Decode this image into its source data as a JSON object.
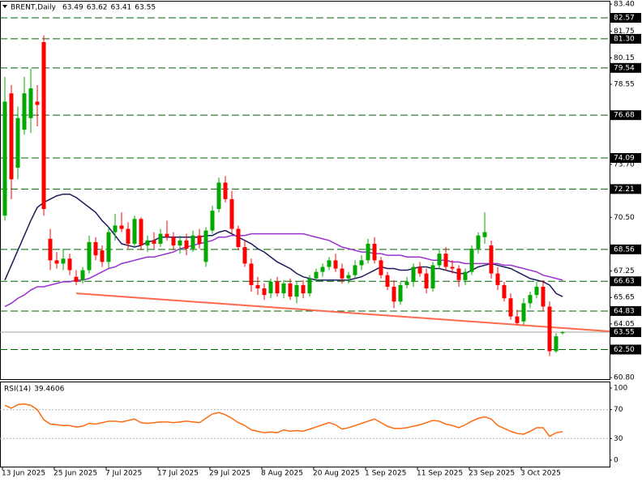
{
  "chart_data": [
    {
      "type": "candlestick",
      "title": "BRENT,Daily",
      "categories": [
        "13 Jun 2025",
        null,
        null,
        null,
        null,
        null,
        null,
        null,
        "25 Jun 2025",
        null,
        null,
        null,
        null,
        null,
        null,
        null,
        "7 Jul 2025",
        null,
        null,
        null,
        null,
        null,
        null,
        null,
        "17 Jul 2025",
        null,
        null,
        null,
        null,
        null,
        null,
        null,
        "29 Jul 2025",
        null,
        null,
        null,
        null,
        null,
        null,
        null,
        "8 Aug 2025",
        null,
        null,
        null,
        null,
        null,
        null,
        null,
        "20 Aug 2025",
        null,
        null,
        null,
        null,
        null,
        null,
        null,
        "1 Sep 2025",
        null,
        null,
        null,
        null,
        null,
        null,
        null,
        "11 Sep 2025",
        null,
        null,
        null,
        null,
        null,
        null,
        null,
        "23 Sep 2025",
        null,
        null,
        null,
        null,
        null,
        null,
        null,
        "3 Oct 2025",
        null,
        null,
        null,
        null,
        null,
        null
      ],
      "open": [
        70.6,
        78.0,
        73.5,
        75.8,
        76.5,
        77.5,
        81.1,
        69.2,
        67.9,
        67.7,
        68.0,
        66.9,
        66.7,
        67.3,
        69.0,
        68.5,
        67.8,
        69.6,
        70.0,
        69.8,
        68.9,
        70.4,
        68.8,
        69.1,
        68.9,
        69.5,
        69.3,
        68.8,
        69.1,
        68.6,
        69.4,
        67.8,
        69.7,
        71.0,
        72.6,
        71.6,
        69.8,
        68.7,
        67.7,
        66.4,
        66.2,
        65.9,
        66.6,
        65.9,
        66.5,
        65.7,
        66.4,
        65.9,
        66.8,
        67.2,
        67.5,
        67.9,
        67.4,
        66.8,
        67.0,
        67.6,
        67.9,
        68.9,
        67.9,
        67.0,
        66.3,
        65.4,
        66.4,
        66.6,
        67.5,
        67.1,
        66.2,
        67.6,
        68.3,
        67.5,
        67.4,
        66.7,
        67.2,
        68.6,
        69.3,
        68.8,
        67.1,
        66.4,
        65.6,
        64.5,
        64.2,
        65.3,
        65.8,
        66.3,
        65.1,
        62.4,
        63.49
      ],
      "high": [
        79.0,
        78.5,
        77.2,
        79.0,
        79.5,
        78.5,
        81.5,
        69.8,
        68.4,
        68.6,
        68.3,
        67.3,
        67.5,
        69.4,
        69.3,
        68.8,
        69.9,
        70.7,
        70.8,
        70.2,
        70.6,
        70.5,
        69.4,
        69.6,
        69.8,
        70.3,
        69.6,
        69.4,
        69.5,
        69.7,
        69.8,
        69.9,
        71.2,
        72.9,
        73.0,
        72.1,
        70.0,
        69.1,
        68.0,
        66.9,
        66.5,
        66.8,
        66.9,
        66.7,
        66.8,
        66.6,
        66.7,
        67.0,
        67.4,
        67.7,
        68.1,
        68.3,
        67.7,
        67.2,
        67.9,
        68.2,
        69.2,
        69.3,
        68.1,
        67.2,
        66.7,
        66.6,
        66.9,
        67.7,
        67.8,
        67.4,
        67.8,
        68.6,
        68.7,
        67.9,
        67.6,
        67.4,
        68.8,
        69.6,
        70.8,
        69.1,
        67.5,
        66.6,
        65.9,
        64.9,
        65.6,
        66.0,
        66.6,
        66.7,
        65.4,
        63.5,
        63.62
      ],
      "low": [
        70.3,
        71.6,
        72.8,
        75.5,
        75.6,
        76.0,
        70.6,
        67.3,
        67.4,
        67.3,
        67.0,
        66.4,
        66.5,
        67.1,
        67.9,
        67.5,
        67.4,
        69.1,
        69.6,
        68.6,
        68.7,
        68.5,
        68.4,
        68.6,
        68.7,
        69.1,
        68.5,
        68.3,
        68.2,
        68.4,
        68.6,
        67.5,
        69.5,
        70.8,
        71.4,
        69.5,
        68.5,
        67.5,
        66.0,
        65.8,
        65.5,
        65.6,
        65.7,
        65.6,
        65.5,
        65.3,
        65.6,
        65.7,
        66.6,
        66.9,
        67.3,
        67.2,
        66.5,
        66.5,
        66.8,
        67.3,
        67.7,
        67.7,
        66.8,
        66.1,
        65.0,
        65.2,
        66.2,
        66.3,
        66.9,
        65.9,
        66.0,
        67.4,
        67.3,
        67.1,
        66.3,
        66.4,
        67.0,
        68.3,
        68.9,
        66.8,
        66.1,
        65.4,
        64.3,
        64.0,
        64.0,
        65.0,
        65.6,
        64.8,
        62.1,
        62.3,
        63.41
      ],
      "close": [
        77.5,
        72.8,
        76.5,
        78.0,
        78.3,
        77.3,
        71.0,
        67.9,
        67.7,
        68.0,
        67.3,
        66.6,
        67.3,
        69.0,
        68.2,
        67.8,
        69.6,
        70.0,
        69.8,
        68.9,
        70.4,
        68.8,
        69.1,
        68.9,
        69.5,
        69.3,
        68.8,
        69.1,
        68.6,
        69.4,
        68.9,
        69.7,
        70.9,
        72.6,
        71.6,
        69.8,
        68.7,
        67.7,
        66.4,
        66.2,
        65.8,
        66.6,
        65.9,
        66.5,
        65.7,
        66.4,
        65.9,
        66.8,
        67.2,
        67.5,
        67.9,
        67.4,
        66.8,
        67.0,
        67.6,
        67.9,
        68.9,
        67.9,
        67.0,
        66.3,
        65.4,
        66.4,
        66.6,
        67.5,
        67.1,
        66.2,
        67.6,
        68.3,
        67.5,
        67.4,
        66.7,
        67.2,
        68.6,
        69.4,
        69.6,
        67.1,
        66.4,
        65.6,
        64.5,
        64.1,
        65.3,
        65.8,
        66.3,
        65.1,
        62.4,
        63.3,
        63.55
      ],
      "up_color": "#00a800",
      "down_color": "#ff0000",
      "overlays": [
        {
          "color": "#1c1c5c",
          "values": [
            66.7,
            67.6,
            68.5,
            69.4,
            70.3,
            71.1,
            71.4,
            71.6,
            71.8,
            71.9,
            71.9,
            71.7,
            71.4,
            71.1,
            70.8,
            70.3,
            69.9,
            69.4,
            68.9,
            68.8,
            68.7,
            68.8,
            69.0,
            69.1,
            69.3,
            69.3,
            69.3,
            69.3,
            69.3,
            69.3,
            69.3,
            69.4,
            69.4,
            69.6,
            69.7,
            69.5,
            69.3,
            69.1,
            68.9,
            68.6,
            68.4,
            68.1,
            67.8,
            67.6,
            67.4,
            67.1,
            66.9,
            66.8,
            66.7,
            66.7,
            66.7,
            66.7,
            66.7,
            66.7,
            66.8,
            66.9,
            67.1,
            67.3,
            67.5,
            67.4,
            67.4,
            67.3,
            67.3,
            67.4,
            67.5,
            67.5,
            67.4,
            67.4,
            67.3,
            67.2,
            67.1,
            67.1,
            67.3,
            67.5,
            67.6,
            67.7,
            67.6,
            67.5,
            67.4,
            67.2,
            67.0,
            66.8,
            66.7,
            66.6,
            66.4,
            65.9,
            65.7
          ]
        },
        {
          "color": "#9b30d0",
          "values": [
            65.1,
            65.3,
            65.6,
            65.8,
            66.1,
            66.3,
            66.3,
            66.4,
            66.5,
            66.6,
            66.6,
            66.7,
            66.7,
            66.8,
            67.0,
            67.2,
            67.4,
            67.5,
            67.7,
            67.8,
            67.9,
            68.0,
            68.1,
            68.1,
            68.2,
            68.3,
            68.4,
            68.6,
            68.7,
            68.8,
            68.9,
            69.0,
            69.1,
            69.3,
            69.3,
            69.4,
            69.4,
            69.4,
            69.5,
            69.5,
            69.5,
            69.5,
            69.5,
            69.5,
            69.5,
            69.5,
            69.5,
            69.4,
            69.3,
            69.2,
            69.1,
            68.9,
            68.7,
            68.6,
            68.5,
            68.4,
            68.4,
            68.3,
            68.3,
            68.2,
            68.2,
            68.2,
            68.1,
            68.1,
            68.1,
            68.0,
            67.9,
            67.9,
            67.9,
            67.8,
            67.8,
            67.7,
            67.7,
            67.7,
            67.7,
            67.7,
            67.7,
            67.6,
            67.6,
            67.5,
            67.4,
            67.3,
            67.2,
            67.0,
            66.9,
            66.8,
            66.7
          ]
        }
      ],
      "trendline": {
        "color": "#ff6a4d",
        "values": [
          65.9,
          63.6
        ]
      },
      "levels": [
        82.57,
        {
          "value": 81.3,
          "label": "81.30"
        },
        79.54,
        76.68,
        74.09,
        72.21,
        68.56,
        66.63,
        64.83,
        {
          "value": 62.5,
          "label": "62.50"
        }
      ],
      "level_color": "#006400",
      "ylim": [
        60.71,
        83.55
      ],
      "yticks": [
        {
          "value": 83.4,
          "label": "83.40"
        },
        81.75,
        80.15,
        78.55,
        {
          "value": 73.7,
          "label": "73.70"
        },
        {
          "value": 70.5,
          "label": "70.50"
        },
        67.25,
        65.65,
        64.05,
        {
          "value": 60.8,
          "label": "60.80"
        }
      ]
    },
    {
      "type": "line",
      "title": "RSI(14)",
      "color": "#ff6a10",
      "values": [
        76,
        72,
        77,
        78,
        76,
        70,
        56,
        50,
        49,
        48,
        48,
        46,
        47,
        51,
        50,
        52,
        54,
        54,
        53,
        55,
        57,
        52,
        51,
        52,
        53,
        53,
        52,
        53,
        54,
        53,
        52,
        58,
        64,
        66,
        63,
        58,
        52,
        48,
        42,
        40,
        38,
        39,
        38,
        42,
        40,
        41,
        40,
        43,
        46,
        49,
        52,
        49,
        43,
        45,
        48,
        51,
        54,
        57,
        52,
        47,
        44,
        44,
        45,
        47,
        49,
        52,
        55,
        54,
        50,
        48,
        45,
        49,
        54,
        58,
        60,
        57,
        48,
        44,
        40,
        37,
        36,
        40,
        45,
        45,
        33,
        38,
        39.4606
      ],
      "ylim": [
        -9,
        109
      ],
      "yticks": [
        0,
        30,
        70,
        100
      ],
      "levels": [
        30,
        70
      ]
    }
  ]
}
